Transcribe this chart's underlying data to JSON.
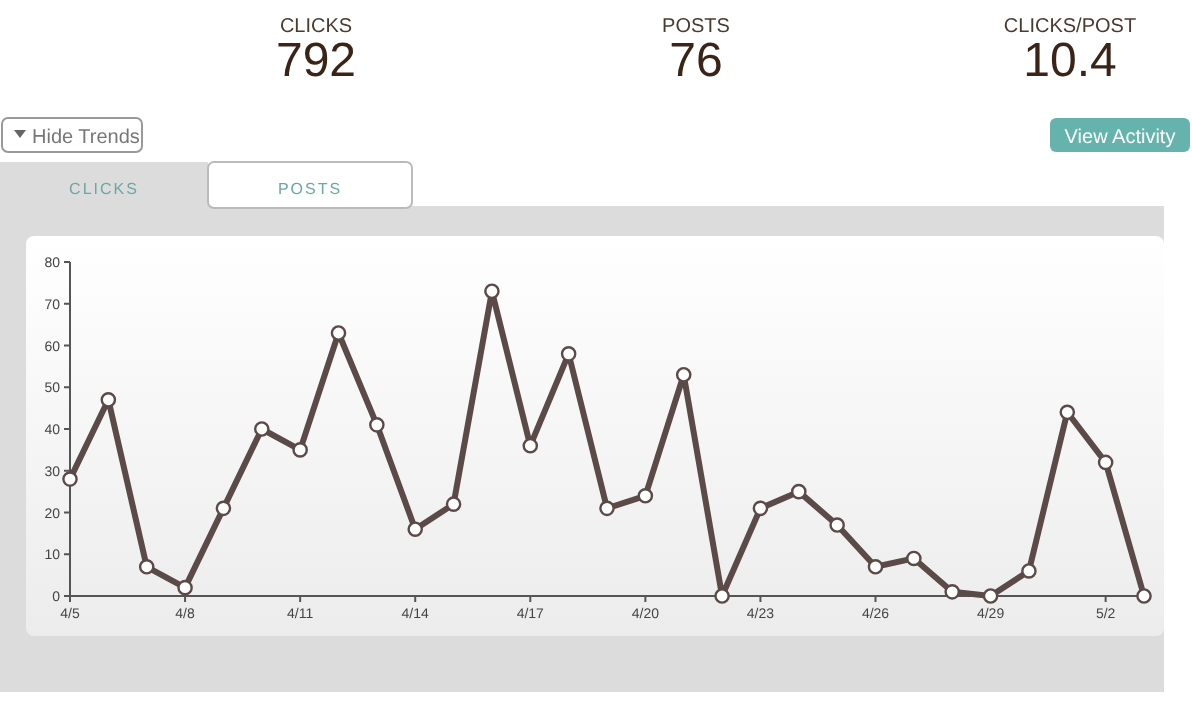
{
  "chart_data": [
    {
      "type": "other",
      "annotations": [
        "CLICKS",
        "792",
        "POSTS",
        "76",
        "CLICKS/POST",
        "10.4",
        "Hide Trends",
        "View Activity",
        "CLICKS",
        "POSTS"
      ]
    },
    {
      "type": "line",
      "categories": [
        "4/5",
        null,
        null,
        "4/8",
        null,
        null,
        "4/11",
        null,
        null,
        "4/14",
        null,
        null,
        "4/17",
        null,
        null,
        "4/20",
        null,
        null,
        "4/23",
        null,
        null,
        "4/26",
        null,
        null,
        "4/29",
        null,
        null,
        "5/2",
        null
      ],
      "series": [
        {
          "color": "#5b4a47",
          "values": [
            28,
            47,
            7,
            2,
            21,
            40,
            35,
            63,
            41,
            16,
            22,
            73,
            36,
            58,
            21,
            24,
            53,
            0,
            21,
            25,
            17,
            7,
            9,
            1,
            0,
            6,
            44,
            32,
            0
          ]
        }
      ],
      "ylim": [
        0,
        80
      ],
      "yticks": [
        0,
        10,
        20,
        30,
        40,
        50,
        60,
        70,
        80
      ],
      "marker": "circle",
      "line_style": "solid",
      "grid": false
    }
  ]
}
